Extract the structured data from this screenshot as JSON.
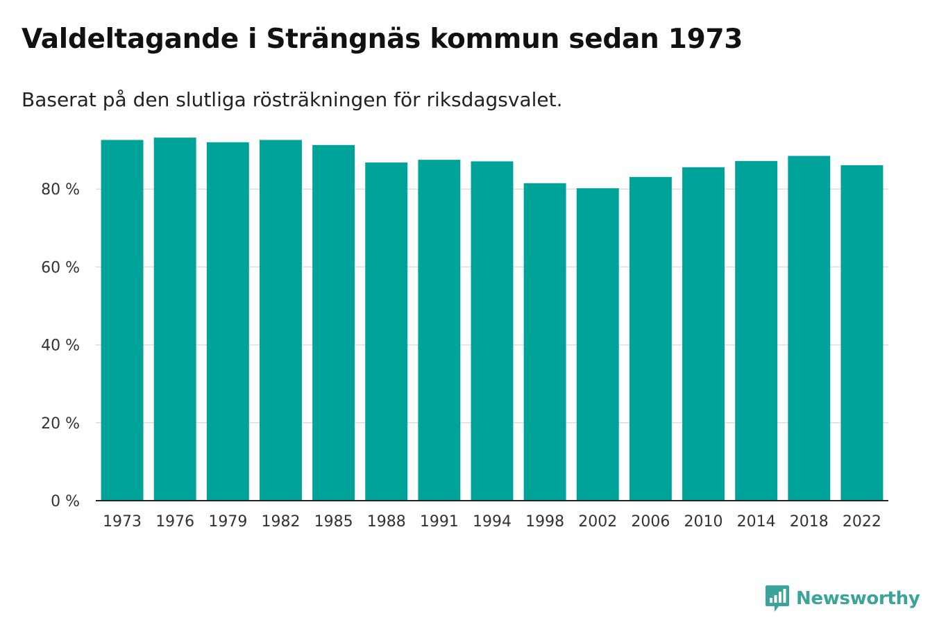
{
  "title": "Valdeltagande i Strängnäs kommun sedan 1973",
  "subtitle": "Baserat på den slutliga rösträkningen för riksdagsvalet.",
  "brand": {
    "name": "Newsworthy",
    "logo_icon": "newsworthy-logo-icon",
    "color": "#3aa39a"
  },
  "colors": {
    "bar": "#00a39a",
    "grid": "#dddddd",
    "axis": "#222222",
    "tick_text": "#333333"
  },
  "chart_data": {
    "type": "bar",
    "title": "Valdeltagande i Strängnäs kommun sedan 1973",
    "xlabel": "",
    "ylabel": "",
    "categories": [
      "1973",
      "1976",
      "1979",
      "1982",
      "1985",
      "1988",
      "1991",
      "1994",
      "1998",
      "2002",
      "2006",
      "2010",
      "2014",
      "2018",
      "2022"
    ],
    "values": [
      92.6,
      93.2,
      92.0,
      92.6,
      91.3,
      86.8,
      87.5,
      87.1,
      81.5,
      80.2,
      83.1,
      85.6,
      87.2,
      88.5,
      86.1
    ],
    "ylim": [
      0,
      100
    ],
    "yticks": [
      0,
      20,
      40,
      60,
      80
    ],
    "ytick_labels": [
      "0 %",
      "20 %",
      "40 %",
      "60 %",
      "80 %"
    ],
    "grid": true,
    "legend": "none"
  }
}
